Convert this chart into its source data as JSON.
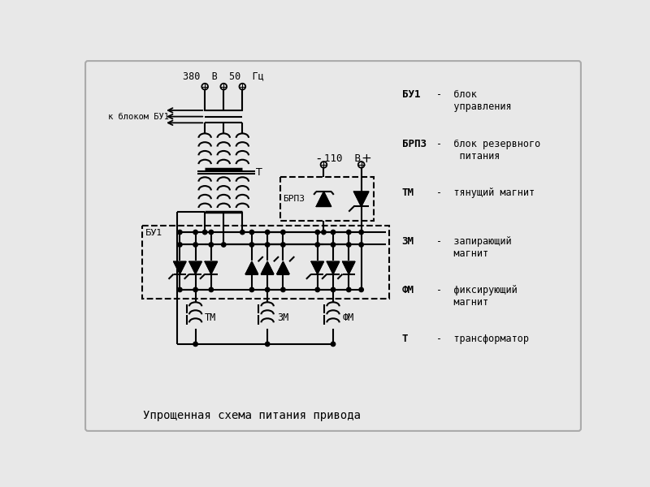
{
  "title": "Упрощенная схема питания привода",
  "bg_color": "#e8e8e8",
  "line_color": "#000000",
  "voltage_label": "380  В  50  Гц",
  "dc_label": "110  В",
  "bu1_label": "БУ1",
  "brpz_label": "БРПЗ",
  "tm_label": "ТМ",
  "zm_label": "ЗМ",
  "fm_label": "ФМ",
  "t_label": "Т",
  "k_label": "к блоком БУ1",
  "legend": [
    [
      "БУ1",
      "-  блок\n   управления"
    ],
    [
      "БРПЗ",
      "-  блок резервного\n    питания"
    ],
    [
      "ТМ",
      "-  тянущий магнит"
    ],
    [
      "ЗМ",
      "-  запирающий\n   магнит"
    ],
    [
      "ФМ",
      "-  фиксирующий\n   магнит"
    ],
    [
      "Т",
      "-  трансформатор"
    ]
  ]
}
